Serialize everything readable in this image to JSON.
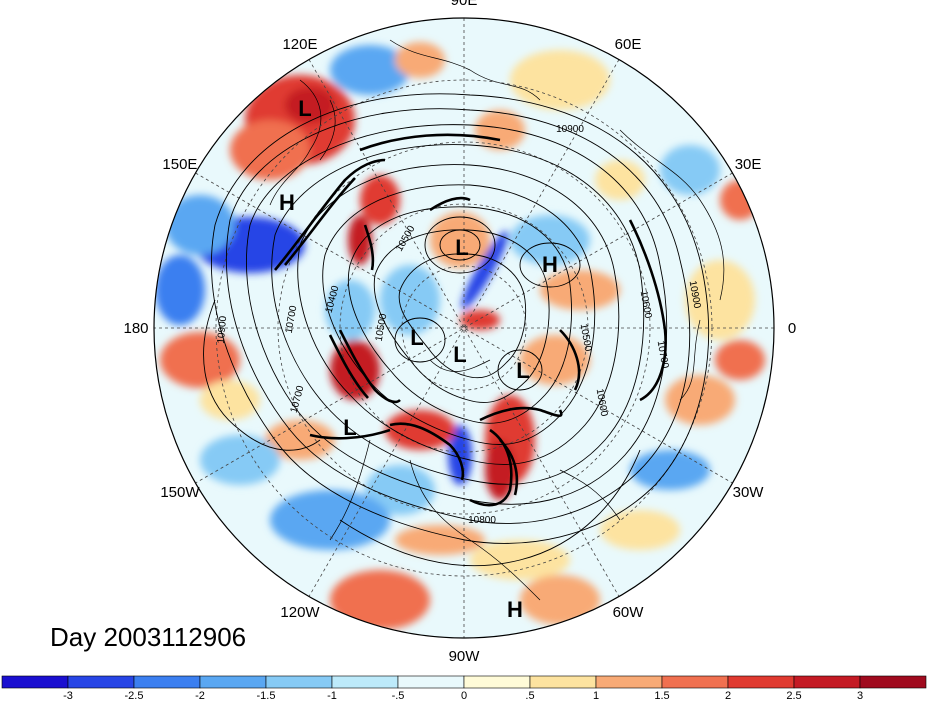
{
  "title": "Day 2003112906",
  "longitude_labels": [
    {
      "text": "90E",
      "lon": 90
    },
    {
      "text": "60E",
      "lon": 60
    },
    {
      "text": "30E",
      "lon": 30
    },
    {
      "text": "0",
      "lon": 0
    },
    {
      "text": "30W",
      "lon": -30
    },
    {
      "text": "60W",
      "lon": -60
    },
    {
      "text": "90W",
      "lon": -90
    },
    {
      "text": "120W",
      "lon": -120
    },
    {
      "text": "150W",
      "lon": -150
    },
    {
      "text": "180",
      "lon": 180
    },
    {
      "text": "150E",
      "lon": 150
    },
    {
      "text": "120E",
      "lon": 120
    }
  ],
  "pressure_centers": [
    {
      "text": "L",
      "kind": "low"
    },
    {
      "text": "H",
      "kind": "high"
    },
    {
      "text": "L",
      "kind": "low"
    },
    {
      "text": "H",
      "kind": "high"
    },
    {
      "text": "L",
      "kind": "low"
    },
    {
      "text": "L",
      "kind": "low"
    },
    {
      "text": "L",
      "kind": "low"
    },
    {
      "text": "L",
      "kind": "low"
    },
    {
      "text": "H",
      "kind": "high"
    }
  ],
  "contour_labels": [
    "10900",
    "10400",
    "10500",
    "10700",
    "10900",
    "10500",
    "10600",
    "10900",
    "10700",
    "10600",
    "10800",
    "10500",
    "10700"
  ],
  "colorbar": {
    "labels": [
      "-3",
      "-2.5",
      "-2",
      "-1.5",
      "-1",
      "-.5",
      "0",
      ".5",
      "1",
      "1.5",
      "2",
      "2.5",
      "3"
    ],
    "colors": [
      "#1a0fd0",
      "#2745e6",
      "#3b7ff0",
      "#5aa7f2",
      "#86caf5",
      "#bdeafa",
      "#e9f9fc",
      "#fffbd8",
      "#fde3a0",
      "#f8aa76",
      "#f07050",
      "#e03a30",
      "#c41a24",
      "#a00a1e"
    ]
  },
  "colors": {
    "background": "#ffffff",
    "contour": "#000000",
    "grid": "#444444"
  }
}
